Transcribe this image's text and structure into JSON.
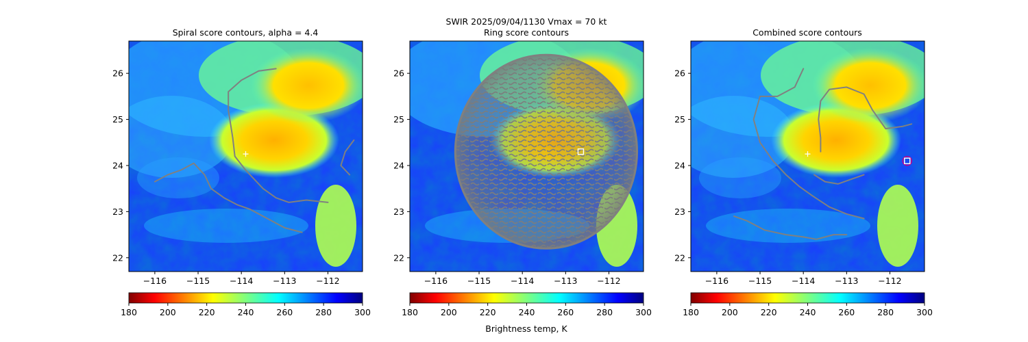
{
  "suptitle_line": "SWIR  2025/09/04/1130    Vmax = 70 kt",
  "colorbar_label": "Brightness temp, K",
  "colors": {
    "contour": "#808080",
    "marker_white": "#ffffff",
    "marker_magenta": "#c0008a",
    "axis": "#000000"
  },
  "colorbar": {
    "ticks": [
      "180",
      "200",
      "220",
      "240",
      "260",
      "280",
      "300"
    ],
    "range": [
      180,
      300
    ]
  },
  "chart_data": [
    {
      "type": "heatmap",
      "title": "Spiral score contours, alpha =  4.4",
      "x_tick_labels": [
        "−116",
        "−115",
        "−114",
        "−113",
        "−112"
      ],
      "y_tick_labels": [
        "22",
        "23",
        "24",
        "25",
        "26"
      ],
      "xlim": [
        -116.6,
        -111.2
      ],
      "ylim": [
        21.7,
        26.7
      ],
      "xticks": [
        -116,
        -115,
        -114,
        -113,
        -112
      ],
      "yticks": [
        22,
        23,
        24,
        25,
        26
      ],
      "center_marker": {
        "symbol": "+",
        "lon": -113.9,
        "lat": 24.25
      },
      "contours": [
        [
          [
            -113.2,
            26.1
          ],
          [
            -113.6,
            26.05
          ],
          [
            -114.0,
            25.85
          ],
          [
            -114.3,
            25.6
          ],
          [
            -114.3,
            25.2
          ],
          [
            -114.2,
            24.6
          ],
          [
            -114.15,
            24.2
          ],
          [
            -113.9,
            23.9
          ],
          [
            -113.7,
            23.7
          ],
          [
            -113.5,
            23.5
          ],
          [
            -113.2,
            23.3
          ],
          [
            -112.9,
            23.2
          ],
          [
            -112.5,
            23.25
          ],
          [
            -112.0,
            23.2
          ]
        ],
        [
          [
            -116.0,
            23.65
          ],
          [
            -115.7,
            23.8
          ],
          [
            -115.4,
            23.9
          ],
          [
            -115.1,
            24.05
          ],
          [
            -114.85,
            23.8
          ],
          [
            -114.7,
            23.5
          ],
          [
            -114.4,
            23.3
          ],
          [
            -114.1,
            23.15
          ],
          [
            -113.8,
            23.05
          ],
          [
            -113.4,
            22.85
          ],
          [
            -113.0,
            22.65
          ],
          [
            -112.6,
            22.55
          ]
        ],
        [
          [
            -111.4,
            24.55
          ],
          [
            -111.6,
            24.3
          ],
          [
            -111.7,
            24.0
          ],
          [
            -111.5,
            23.8
          ]
        ]
      ]
    },
    {
      "type": "heatmap",
      "title": "Ring score contours",
      "x_tick_labels": [
        "−116",
        "−115",
        "−114",
        "−113",
        "−112"
      ],
      "y_tick_labels": [
        "22",
        "23",
        "24",
        "25",
        "26"
      ],
      "xlim": [
        -116.6,
        -111.2
      ],
      "ylim": [
        21.7,
        26.7
      ],
      "xticks": [
        -116,
        -115,
        -114,
        -113,
        -112
      ],
      "yticks": [
        22,
        23,
        24,
        25,
        26
      ],
      "ring_region": {
        "center_lon": -113.45,
        "center_lat": 24.3,
        "radius_deg": 2.1
      },
      "box_marker": {
        "symbol": "square",
        "lon": -112.65,
        "lat": 24.3
      }
    },
    {
      "type": "heatmap",
      "title": "Combined score contours",
      "x_tick_labels": [
        "−116",
        "−115",
        "−114",
        "−113",
        "−112"
      ],
      "y_tick_labels": [
        "22",
        "23",
        "24",
        "25",
        "26"
      ],
      "xlim": [
        -116.6,
        -111.2
      ],
      "ylim": [
        21.7,
        26.7
      ],
      "xticks": [
        -116,
        -115,
        -114,
        -113,
        -112
      ],
      "yticks": [
        22,
        23,
        24,
        25,
        26
      ],
      "center_marker": {
        "symbol": "+",
        "lon": -113.9,
        "lat": 24.25
      },
      "box_marker": {
        "symbol": "square",
        "lon": -111.6,
        "lat": 24.1
      },
      "circle_marker": {
        "symbol": "circle",
        "lon": -111.6,
        "lat": 24.1
      },
      "contours": [
        [
          [
            -113.6,
            24.3
          ],
          [
            -113.6,
            24.6
          ],
          [
            -113.65,
            25.0
          ],
          [
            -113.6,
            25.4
          ],
          [
            -113.4,
            25.65
          ],
          [
            -113.0,
            25.7
          ],
          [
            -112.6,
            25.55
          ],
          [
            -112.4,
            25.2
          ],
          [
            -112.1,
            24.8
          ],
          [
            -111.7,
            24.85
          ],
          [
            -111.5,
            24.9
          ]
        ],
        [
          [
            -114.0,
            26.1
          ],
          [
            -114.2,
            25.7
          ],
          [
            -114.6,
            25.5
          ],
          [
            -115.0,
            25.5
          ],
          [
            -115.15,
            25.0
          ],
          [
            -115.0,
            24.5
          ],
          [
            -114.7,
            24.1
          ],
          [
            -114.4,
            23.8
          ],
          [
            -114.1,
            23.55
          ],
          [
            -113.8,
            23.35
          ],
          [
            -113.4,
            23.1
          ],
          [
            -113.0,
            22.95
          ],
          [
            -112.6,
            22.85
          ]
        ],
        [
          [
            -112.6,
            23.8
          ],
          [
            -112.9,
            23.7
          ],
          [
            -113.2,
            23.6
          ],
          [
            -113.5,
            23.65
          ],
          [
            -113.75,
            23.8
          ]
        ],
        [
          [
            -115.6,
            22.9
          ],
          [
            -115.3,
            22.8
          ],
          [
            -114.9,
            22.6
          ],
          [
            -114.4,
            22.5
          ],
          [
            -114.0,
            22.45
          ],
          [
            -113.7,
            22.4
          ],
          [
            -113.3,
            22.5
          ],
          [
            -113.0,
            22.5
          ]
        ]
      ]
    }
  ]
}
